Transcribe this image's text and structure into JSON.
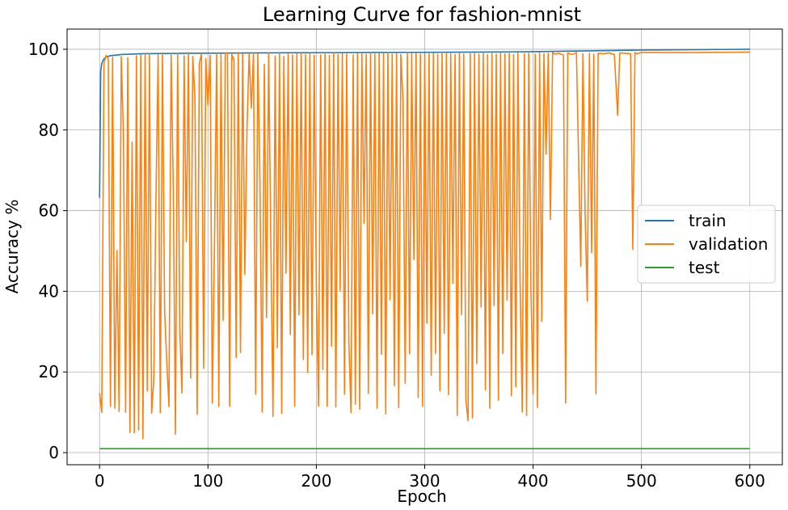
{
  "chart_data": {
    "type": "line",
    "title": "Learning Curve for fashion-mnist",
    "xlabel": "Epoch",
    "ylabel": "Accuracy %",
    "xlim": [
      -30,
      630
    ],
    "ylim": [
      -3,
      105
    ],
    "xticks": [
      0,
      100,
      200,
      300,
      400,
      500,
      600
    ],
    "yticks": [
      0,
      20,
      40,
      60,
      80,
      100
    ],
    "grid": true,
    "legend_position": "center-right",
    "series": [
      {
        "name": "train",
        "color": "#1f77b4",
        "points": [
          [
            0,
            63.2
          ],
          [
            1,
            94.5
          ],
          [
            2,
            96.5
          ],
          [
            4,
            97.6
          ],
          [
            6,
            98.1
          ],
          [
            10,
            98.4
          ],
          [
            20,
            98.7
          ],
          [
            40,
            98.9
          ],
          [
            80,
            99.0
          ],
          [
            150,
            99.1
          ],
          [
            250,
            99.2
          ],
          [
            350,
            99.3
          ],
          [
            400,
            99.4
          ],
          [
            450,
            99.6
          ],
          [
            500,
            99.8
          ],
          [
            550,
            99.9
          ],
          [
            600,
            100.0
          ]
        ]
      },
      {
        "name": "validation",
        "color": "#ff7f0e",
        "points": [
          [
            0,
            14.8
          ],
          [
            2,
            10.0
          ],
          [
            4,
            96.5
          ],
          [
            6,
            98.5
          ],
          [
            8,
            97.8
          ],
          [
            10,
            11.5
          ],
          [
            12,
            98.0
          ],
          [
            14,
            11.0
          ],
          [
            16,
            50.1
          ],
          [
            18,
            10.2
          ],
          [
            20,
            98.2
          ],
          [
            22,
            78.6
          ],
          [
            24,
            10.0
          ],
          [
            26,
            97.9
          ],
          [
            28,
            5.0
          ],
          [
            30,
            77.0
          ],
          [
            32,
            4.9
          ],
          [
            34,
            98.4
          ],
          [
            36,
            5.6
          ],
          [
            38,
            98.6
          ],
          [
            40,
            3.5
          ],
          [
            42,
            99.0
          ],
          [
            44,
            15.3
          ],
          [
            46,
            98.8
          ],
          [
            48,
            9.8
          ],
          [
            50,
            18.2
          ],
          [
            52,
            63.0
          ],
          [
            54,
            98.6
          ],
          [
            56,
            9.9
          ],
          [
            58,
            99.1
          ],
          [
            60,
            35.2
          ],
          [
            62,
            22.3
          ],
          [
            64,
            11.4
          ],
          [
            66,
            98.9
          ],
          [
            68,
            65.5
          ],
          [
            70,
            4.6
          ],
          [
            72,
            99.0
          ],
          [
            74,
            30.6
          ],
          [
            76,
            14.8
          ],
          [
            78,
            98.4
          ],
          [
            80,
            52.3
          ],
          [
            82,
            99.2
          ],
          [
            84,
            18.5
          ],
          [
            86,
            98.2
          ],
          [
            88,
            87.8
          ],
          [
            90,
            9.5
          ],
          [
            92,
            96.5
          ],
          [
            94,
            98.9
          ],
          [
            96,
            20.9
          ],
          [
            98,
            97.7
          ],
          [
            100,
            86.2
          ],
          [
            102,
            98.5
          ],
          [
            104,
            12.3
          ],
          [
            106,
            51.4
          ],
          [
            108,
            98.9
          ],
          [
            110,
            11.5
          ],
          [
            112,
            98.7
          ],
          [
            114,
            32.8
          ],
          [
            116,
            98.9
          ],
          [
            118,
            99.2
          ],
          [
            120,
            11.5
          ],
          [
            122,
            98.7
          ],
          [
            124,
            97.3
          ],
          [
            126,
            23.6
          ],
          [
            128,
            99.2
          ],
          [
            130,
            24.8
          ],
          [
            132,
            98.8
          ],
          [
            134,
            44.2
          ],
          [
            136,
            80.3
          ],
          [
            138,
            98.8
          ],
          [
            140,
            85.4
          ],
          [
            142,
            99.0
          ],
          [
            144,
            14.5
          ],
          [
            146,
            98.9
          ],
          [
            148,
            67.0
          ],
          [
            150,
            10.1
          ],
          [
            152,
            96.3
          ],
          [
            154,
            33.5
          ],
          [
            156,
            99.1
          ],
          [
            158,
            52.0
          ],
          [
            160,
            9.0
          ],
          [
            162,
            98.3
          ],
          [
            164,
            26.0
          ],
          [
            166,
            99.0
          ],
          [
            168,
            9.7
          ],
          [
            170,
            98.2
          ],
          [
            172,
            44.5
          ],
          [
            174,
            98.8
          ],
          [
            176,
            29.3
          ],
          [
            178,
            98.6
          ],
          [
            180,
            11.5
          ],
          [
            182,
            98.9
          ],
          [
            184,
            34.2
          ],
          [
            186,
            99.0
          ],
          [
            188,
            23.1
          ],
          [
            190,
            98.7
          ],
          [
            192,
            19.9
          ],
          [
            194,
            98.9
          ],
          [
            196,
            24.3
          ],
          [
            198,
            98.5
          ],
          [
            200,
            41.2
          ],
          [
            202,
            11.5
          ],
          [
            204,
            98.6
          ],
          [
            206,
            20.6
          ],
          [
            208,
            98.8
          ],
          [
            210,
            11.5
          ],
          [
            212,
            98.5
          ],
          [
            214,
            26.4
          ],
          [
            216,
            99.1
          ],
          [
            218,
            11.3
          ],
          [
            220,
            98.7
          ],
          [
            222,
            40.2
          ],
          [
            224,
            99.0
          ],
          [
            226,
            14.5
          ],
          [
            228,
            98.8
          ],
          [
            230,
            27.3
          ],
          [
            232,
            9.9
          ],
          [
            234,
            98.6
          ],
          [
            236,
            12.0
          ],
          [
            238,
            98.9
          ],
          [
            240,
            10.8
          ],
          [
            242,
            99.0
          ],
          [
            244,
            56.8
          ],
          [
            246,
            98.7
          ],
          [
            248,
            14.7
          ],
          [
            250,
            99.1
          ],
          [
            252,
            34.4
          ],
          [
            254,
            98.8
          ],
          [
            256,
            11.0
          ],
          [
            258,
            99.0
          ],
          [
            260,
            24.4
          ],
          [
            262,
            98.9
          ],
          [
            264,
            9.6
          ],
          [
            266,
            99.2
          ],
          [
            268,
            37.9
          ],
          [
            270,
            98.8
          ],
          [
            272,
            16.6
          ],
          [
            274,
            99.0
          ],
          [
            276,
            11.2
          ],
          [
            278,
            98.7
          ],
          [
            280,
            87.0
          ],
          [
            282,
            17.2
          ],
          [
            284,
            99.2
          ],
          [
            286,
            24.5
          ],
          [
            288,
            98.9
          ],
          [
            290,
            47.9
          ],
          [
            292,
            99.1
          ],
          [
            294,
            13.7
          ],
          [
            296,
            98.8
          ],
          [
            298,
            11.5
          ],
          [
            300,
            99.0
          ],
          [
            302,
            32.1
          ],
          [
            304,
            98.9
          ],
          [
            306,
            19.2
          ],
          [
            308,
            99.0
          ],
          [
            310,
            24.6
          ],
          [
            312,
            98.8
          ],
          [
            314,
            15.3
          ],
          [
            316,
            99.2
          ],
          [
            318,
            29.6
          ],
          [
            320,
            98.9
          ],
          [
            322,
            14.4
          ],
          [
            324,
            99.0
          ],
          [
            326,
            42.0
          ],
          [
            328,
            98.7
          ],
          [
            330,
            9.2
          ],
          [
            332,
            99.1
          ],
          [
            334,
            34.2
          ],
          [
            336,
            98.8
          ],
          [
            338,
            12.9
          ],
          [
            340,
            7.9
          ],
          [
            342,
            98.9
          ],
          [
            344,
            8.6
          ],
          [
            346,
            99.0
          ],
          [
            348,
            22.1
          ],
          [
            350,
            98.8
          ],
          [
            352,
            36.1
          ],
          [
            354,
            99.1
          ],
          [
            356,
            15.6
          ],
          [
            358,
            98.7
          ],
          [
            360,
            11.0
          ],
          [
            362,
            99.0
          ],
          [
            364,
            36.5
          ],
          [
            366,
            98.8
          ],
          [
            368,
            13.0
          ],
          [
            370,
            99.1
          ],
          [
            372,
            24.6
          ],
          [
            374,
            98.9
          ],
          [
            376,
            37.8
          ],
          [
            378,
            99.0
          ],
          [
            380,
            14.1
          ],
          [
            382,
            98.7
          ],
          [
            384,
            16.3
          ],
          [
            386,
            99.1
          ],
          [
            388,
            42.6
          ],
          [
            390,
            10.1
          ],
          [
            392,
            98.9
          ],
          [
            394,
            9.2
          ],
          [
            396,
            99.0
          ],
          [
            398,
            40.3
          ],
          [
            400,
            14.5
          ],
          [
            402,
            98.8
          ],
          [
            404,
            11.2
          ],
          [
            406,
            99.1
          ],
          [
            408,
            32.6
          ],
          [
            410,
            98.9
          ],
          [
            412,
            74.0
          ],
          [
            414,
            99.0
          ],
          [
            416,
            57.8
          ],
          [
            418,
            99.2
          ],
          [
            420,
            98.8
          ],
          [
            424,
            99.0
          ],
          [
            428,
            98.6
          ],
          [
            430,
            12.3
          ],
          [
            432,
            99.1
          ],
          [
            436,
            98.7
          ],
          [
            440,
            99.2
          ],
          [
            444,
            46.2
          ],
          [
            446,
            98.9
          ],
          [
            448,
            59.2
          ],
          [
            450,
            37.6
          ],
          [
            452,
            99.0
          ],
          [
            454,
            49.6
          ],
          [
            456,
            98.8
          ],
          [
            458,
            14.6
          ],
          [
            460,
            99.0
          ],
          [
            465,
            98.9
          ],
          [
            470,
            99.1
          ],
          [
            475,
            98.7
          ],
          [
            478,
            83.7
          ],
          [
            480,
            99.1
          ],
          [
            485,
            99.0
          ],
          [
            490,
            98.9
          ],
          [
            492,
            50.4
          ],
          [
            494,
            99.2
          ],
          [
            496,
            98.9
          ],
          [
            500,
            99.2
          ],
          [
            550,
            99.2
          ],
          [
            600,
            99.3
          ]
        ]
      },
      {
        "name": "test",
        "color": "#2ca02c",
        "points": [
          [
            0,
            1.0
          ],
          [
            600,
            1.0
          ]
        ]
      }
    ]
  }
}
